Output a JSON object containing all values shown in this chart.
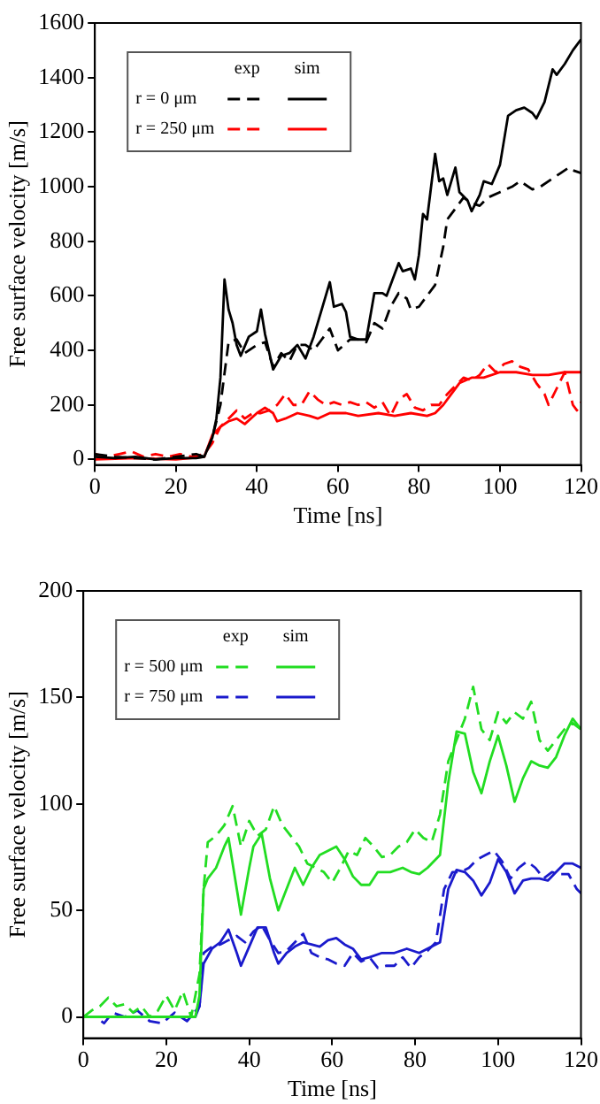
{
  "chart_data": [
    {
      "type": "line",
      "xlabel": "Time [ns]",
      "ylabel": "Free surface velocity [m/s]",
      "xlim": [
        0,
        120
      ],
      "xticks": [
        0,
        20,
        40,
        60,
        80,
        100,
        120
      ],
      "ylim": [
        -20,
        1600
      ],
      "yticks": [
        0,
        200,
        400,
        600,
        800,
        1000,
        1200,
        1400,
        1600
      ],
      "grid": false,
      "legend": "top left",
      "marker": "none",
      "annotations": [
        "exp",
        "sim"
      ],
      "series": [
        {
          "name": "r = 0 μm",
          "color": "#000000",
          "line_style": "dashed",
          "x": [
            0,
            5,
            10,
            15,
            20,
            25,
            27,
            29,
            31,
            33,
            35,
            37,
            40,
            42,
            44,
            46,
            48,
            50,
            52,
            54,
            56,
            58,
            60,
            63,
            65,
            67,
            69,
            71,
            73,
            75,
            77,
            78,
            80,
            82,
            84,
            86,
            87,
            89,
            91,
            93,
            95,
            97,
            100,
            103,
            105,
            108,
            110,
            113,
            115,
            117,
            118,
            120
          ],
          "values": [
            20,
            10,
            5,
            0,
            10,
            20,
            10,
            80,
            200,
            430,
            440,
            390,
            420,
            430,
            340,
            390,
            360,
            420,
            420,
            400,
            440,
            480,
            400,
            440,
            440,
            430,
            500,
            480,
            560,
            610,
            590,
            550,
            560,
            600,
            640,
            780,
            880,
            920,
            960,
            940,
            930,
            960,
            980,
            1000,
            1020,
            990,
            1000,
            1030,
            1050,
            1070,
            1060,
            1050
          ]
        },
        {
          "color": "#000000",
          "line_style": "solid",
          "x": [
            0,
            5,
            10,
            15,
            20,
            25,
            27,
            29,
            30,
            31,
            32,
            33,
            34,
            35,
            36,
            38,
            40,
            41,
            42,
            44,
            46,
            48,
            50,
            52,
            54,
            56,
            58,
            59,
            61,
            62,
            63,
            65,
            67,
            69,
            71,
            72,
            74,
            75,
            76,
            78,
            79,
            80,
            81,
            82,
            83,
            84,
            85,
            86,
            87,
            89,
            90,
            92,
            93,
            95,
            96,
            98,
            100,
            102,
            104,
            106,
            108,
            109,
            111,
            113,
            114,
            116,
            118,
            120
          ],
          "values": [
            10,
            5,
            10,
            0,
            5,
            5,
            10,
            80,
            150,
            300,
            660,
            550,
            500,
            420,
            380,
            450,
            470,
            550,
            460,
            330,
            380,
            390,
            420,
            370,
            450,
            550,
            650,
            560,
            570,
            540,
            450,
            440,
            440,
            610,
            610,
            600,
            680,
            720,
            690,
            700,
            660,
            750,
            900,
            880,
            1000,
            1120,
            1020,
            1030,
            970,
            1070,
            980,
            950,
            910,
            970,
            1020,
            1010,
            1080,
            1260,
            1280,
            1290,
            1270,
            1250,
            1310,
            1430,
            1410,
            1450,
            1500,
            1540
          ]
        },
        {
          "name": "r = 250 μm",
          "color": "#ff0000",
          "line_style": "dashed",
          "x": [
            0,
            3,
            6,
            9,
            12,
            15,
            18,
            21,
            24,
            27,
            29,
            31,
            33,
            35,
            37,
            39,
            41,
            43,
            45,
            47,
            49,
            51,
            53,
            55,
            57,
            59,
            61,
            63,
            65,
            67,
            69,
            71,
            73,
            75,
            77,
            79,
            81,
            83,
            85,
            87,
            89,
            91,
            93,
            95,
            97,
            99,
            101,
            103,
            105,
            107,
            109,
            111,
            112,
            114,
            116,
            118,
            119,
            120
          ],
          "values": [
            20,
            10,
            20,
            30,
            10,
            20,
            10,
            20,
            10,
            20,
            60,
            120,
            150,
            180,
            150,
            170,
            170,
            180,
            200,
            240,
            200,
            200,
            250,
            220,
            200,
            210,
            200,
            210,
            200,
            210,
            190,
            210,
            160,
            220,
            240,
            190,
            180,
            200,
            200,
            240,
            270,
            300,
            290,
            310,
            350,
            320,
            350,
            360,
            340,
            330,
            280,
            240,
            200,
            260,
            320,
            200,
            180,
            210
          ]
        },
        {
          "color": "#ff0000",
          "line_style": "solid",
          "x": [
            0,
            10,
            20,
            27,
            29,
            31,
            33,
            35,
            37,
            40,
            42,
            44,
            45,
            47,
            50,
            53,
            55,
            58,
            62,
            65,
            70,
            74,
            78,
            82,
            84,
            86,
            88,
            90,
            93,
            96,
            100,
            104,
            108,
            112,
            116,
            120
          ],
          "values": [
            0,
            5,
            0,
            10,
            90,
            120,
            140,
            150,
            130,
            170,
            190,
            170,
            140,
            150,
            170,
            160,
            150,
            170,
            170,
            160,
            170,
            160,
            170,
            160,
            170,
            200,
            240,
            280,
            300,
            300,
            320,
            320,
            310,
            310,
            320,
            320
          ]
        }
      ]
    },
    {
      "type": "line",
      "xlabel": "Time [ns]",
      "ylabel": "Free surface velocity [m/s]",
      "xlim": [
        0,
        120
      ],
      "xticks": [
        0,
        20,
        40,
        60,
        80,
        100,
        120
      ],
      "ylim": [
        -10,
        200
      ],
      "yticks": [
        0,
        50,
        100,
        150,
        200
      ],
      "grid": false,
      "legend": "top left",
      "marker": "none",
      "annotations": [
        "exp",
        "sim"
      ],
      "series": [
        {
          "name": "r = 500 μm",
          "color": "#22dd22",
          "line_style": "dashed",
          "x": [
            0,
            2,
            4,
            6,
            8,
            10,
            12,
            14,
            16,
            18,
            20,
            22,
            24,
            26,
            28,
            29,
            30,
            32,
            34,
            36,
            38,
            40,
            42,
            44,
            46,
            48,
            50,
            52,
            54,
            56,
            58,
            60,
            62,
            64,
            66,
            68,
            70,
            72,
            74,
            76,
            78,
            80,
            82,
            84,
            86,
            88,
            90,
            92,
            94,
            96,
            98,
            100,
            102,
            104,
            106,
            108,
            110,
            112,
            114,
            116,
            118,
            120
          ],
          "values": [
            0,
            3,
            5,
            9,
            5,
            6,
            2,
            5,
            0,
            3,
            10,
            3,
            12,
            0,
            20,
            60,
            82,
            85,
            90,
            99,
            80,
            92,
            85,
            88,
            99,
            90,
            85,
            80,
            72,
            70,
            68,
            63,
            70,
            78,
            76,
            84,
            80,
            75,
            76,
            80,
            82,
            88,
            84,
            82,
            95,
            120,
            130,
            140,
            155,
            135,
            130,
            143,
            138,
            143,
            140,
            148,
            130,
            125,
            130,
            135,
            138,
            135
          ]
        },
        {
          "color": "#22dd22",
          "line_style": "solid",
          "x": [
            0,
            10,
            20,
            27,
            28,
            29,
            30,
            32,
            34,
            35,
            37,
            38,
            40,
            41,
            43,
            45,
            47,
            49,
            51,
            53,
            55,
            57,
            59,
            61,
            63,
            65,
            67,
            69,
            71,
            74,
            77,
            79,
            81,
            83,
            86,
            88,
            90,
            92,
            94,
            96,
            98,
            100,
            102,
            104,
            106,
            108,
            110,
            112,
            114,
            116,
            118,
            120
          ],
          "values": [
            0,
            0,
            0,
            0,
            10,
            60,
            65,
            70,
            80,
            84,
            60,
            48,
            70,
            80,
            86,
            65,
            50,
            60,
            70,
            62,
            70,
            76,
            78,
            80,
            74,
            66,
            62,
            62,
            68,
            68,
            70,
            68,
            67,
            70,
            76,
            110,
            134,
            133,
            115,
            105,
            120,
            132,
            118,
            101,
            112,
            120,
            118,
            117,
            122,
            132,
            140,
            135
          ]
        },
        {
          "name": "r = 750 μm",
          "color": "#1a1acc",
          "line_style": "dashed",
          "x": [
            0,
            3,
            5,
            7,
            10,
            13,
            16,
            19,
            22,
            25,
            28,
            29,
            31,
            33,
            35,
            37,
            39,
            41,
            43,
            45,
            47,
            49,
            51,
            53,
            55,
            57,
            59,
            61,
            63,
            65,
            67,
            69,
            71,
            73,
            75,
            77,
            79,
            81,
            83,
            85,
            87,
            89,
            91,
            93,
            95,
            97,
            99,
            101,
            103,
            105,
            107,
            109,
            111,
            113,
            115,
            117,
            119,
            120
          ],
          "values": [
            0,
            0,
            -3,
            2,
            0,
            3,
            -2,
            -3,
            2,
            -2,
            5,
            30,
            33,
            34,
            36,
            38,
            35,
            40,
            43,
            36,
            30,
            31,
            35,
            39,
            30,
            28,
            27,
            25,
            24,
            30,
            26,
            28,
            23,
            24,
            24,
            28,
            23,
            28,
            31,
            35,
            60,
            68,
            68,
            70,
            74,
            76,
            78,
            73,
            65,
            70,
            73,
            70,
            65,
            68,
            67,
            67,
            60,
            58
          ]
        },
        {
          "color": "#1a1acc",
          "line_style": "solid",
          "x": [
            0,
            10,
            20,
            27,
            28,
            29,
            31,
            33,
            35,
            37,
            38,
            40,
            42,
            44,
            46,
            47,
            49,
            51,
            53,
            55,
            57,
            59,
            61,
            63,
            65,
            67,
            69,
            72,
            75,
            78,
            81,
            84,
            86,
            88,
            90,
            92,
            94,
            96,
            98,
            100,
            102,
            104,
            106,
            108,
            110,
            112,
            114,
            116,
            118,
            120
          ],
          "values": [
            0,
            0,
            0,
            0,
            5,
            25,
            32,
            35,
            41,
            30,
            24,
            33,
            42,
            42,
            30,
            25,
            30,
            33,
            35,
            34,
            33,
            36,
            37,
            34,
            32,
            27,
            28,
            30,
            30,
            32,
            30,
            33,
            35,
            60,
            69,
            68,
            64,
            57,
            63,
            74,
            68,
            58,
            64,
            65,
            65,
            64,
            68,
            72,
            72,
            70
          ]
        }
      ]
    }
  ]
}
